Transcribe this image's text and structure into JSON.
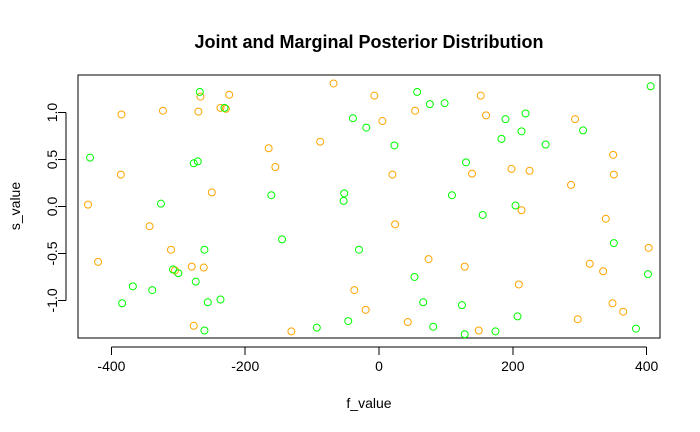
{
  "chart_data": {
    "type": "scatter",
    "title": "Joint and Marginal Posterior Distribution",
    "xlabel": "f_value",
    "ylabel": "s_value",
    "xlim": [
      -450,
      420
    ],
    "ylim": [
      -1.4,
      1.4
    ],
    "x_ticks": [
      -400,
      -200,
      0,
      200,
      400
    ],
    "y_ticks": [
      -1.0,
      -0.5,
      0.0,
      0.5,
      1.0
    ],
    "x_tick_labels": [
      "-400",
      "-200",
      "0",
      "200",
      "400"
    ],
    "y_tick_labels": [
      "-1.0",
      "-0.5",
      "0.0",
      "0.5",
      "1.0"
    ],
    "legend": "none",
    "grid": false,
    "series": [
      {
        "color": "#FFA500",
        "points": [
          {
            "x": -435,
            "y": 0.02
          },
          {
            "x": -420,
            "y": -0.59
          },
          {
            "x": -385,
            "y": 0.98
          },
          {
            "x": -386,
            "y": 0.34
          },
          {
            "x": -343,
            "y": -0.21
          },
          {
            "x": -323,
            "y": 1.02
          },
          {
            "x": -311,
            "y": -0.46
          },
          {
            "x": -305,
            "y": -0.68
          },
          {
            "x": -280,
            "y": -0.64
          },
          {
            "x": -277,
            "y": -1.27
          },
          {
            "x": -270,
            "y": 1.01
          },
          {
            "x": -267,
            "y": 1.17
          },
          {
            "x": -262,
            "y": -0.65
          },
          {
            "x": -250,
            "y": 0.15
          },
          {
            "x": -237,
            "y": 1.05
          },
          {
            "x": -229,
            "y": 1.04
          },
          {
            "x": -224,
            "y": 1.19
          },
          {
            "x": -165,
            "y": 0.62
          },
          {
            "x": -155,
            "y": 0.42
          },
          {
            "x": -131,
            "y": -1.33
          },
          {
            "x": -88,
            "y": 0.69
          },
          {
            "x": -68,
            "y": 1.31
          },
          {
            "x": -37,
            "y": -0.89
          },
          {
            "x": -20,
            "y": -1.1
          },
          {
            "x": -7,
            "y": 1.18
          },
          {
            "x": 5,
            "y": 0.91
          },
          {
            "x": 20,
            "y": 0.34
          },
          {
            "x": 24,
            "y": -0.19
          },
          {
            "x": 43,
            "y": -1.23
          },
          {
            "x": 54,
            "y": 1.02
          },
          {
            "x": 74,
            "y": -0.56
          },
          {
            "x": 128,
            "y": -0.64
          },
          {
            "x": 139,
            "y": 0.35
          },
          {
            "x": 149,
            "y": -1.32
          },
          {
            "x": 152,
            "y": 1.18
          },
          {
            "x": 160,
            "y": 0.97
          },
          {
            "x": 198,
            "y": 0.4
          },
          {
            "x": 209,
            "y": -0.83
          },
          {
            "x": 213,
            "y": -0.04
          },
          {
            "x": 225,
            "y": 0.38
          },
          {
            "x": 287,
            "y": 0.23
          },
          {
            "x": 293,
            "y": 0.93
          },
          {
            "x": 297,
            "y": -1.2
          },
          {
            "x": 315,
            "y": -0.61
          },
          {
            "x": 335,
            "y": -0.69
          },
          {
            "x": 339,
            "y": -0.13
          },
          {
            "x": 349,
            "y": -1.03
          },
          {
            "x": 350,
            "y": 0.55
          },
          {
            "x": 351,
            "y": 0.34
          },
          {
            "x": 365,
            "y": -1.12
          },
          {
            "x": 403,
            "y": -0.44
          }
        ]
      },
      {
        "color": "#00FF00",
        "points": [
          {
            "x": -432,
            "y": 0.52
          },
          {
            "x": -384,
            "y": -1.03
          },
          {
            "x": -368,
            "y": -0.85
          },
          {
            "x": -339,
            "y": -0.89
          },
          {
            "x": -326,
            "y": 0.03
          },
          {
            "x": -308,
            "y": -0.67
          },
          {
            "x": -300,
            "y": -0.71
          },
          {
            "x": -277,
            "y": 0.46
          },
          {
            "x": -274,
            "y": -0.8
          },
          {
            "x": -271,
            "y": 0.48
          },
          {
            "x": -268,
            "y": 1.22
          },
          {
            "x": -261,
            "y": -0.46
          },
          {
            "x": -261,
            "y": -1.32
          },
          {
            "x": -256,
            "y": -1.02
          },
          {
            "x": -237,
            "y": -0.99
          },
          {
            "x": -231,
            "y": 1.05
          },
          {
            "x": -161,
            "y": 0.12
          },
          {
            "x": -145,
            "y": -0.35
          },
          {
            "x": -93,
            "y": -1.29
          },
          {
            "x": -52,
            "y": 0.14
          },
          {
            "x": -53,
            "y": 0.06
          },
          {
            "x": -46,
            "y": -1.22
          },
          {
            "x": -39,
            "y": 0.94
          },
          {
            "x": -30,
            "y": -0.46
          },
          {
            "x": -19,
            "y": 0.84
          },
          {
            "x": 23,
            "y": 0.65
          },
          {
            "x": 53,
            "y": -0.75
          },
          {
            "x": 57,
            "y": 1.22
          },
          {
            "x": 66,
            "y": -1.02
          },
          {
            "x": 76,
            "y": 1.09
          },
          {
            "x": 81,
            "y": -1.28
          },
          {
            "x": 98,
            "y": 1.1
          },
          {
            "x": 109,
            "y": 0.12
          },
          {
            "x": 124,
            "y": -1.05
          },
          {
            "x": 128,
            "y": -1.36
          },
          {
            "x": 130,
            "y": 0.47
          },
          {
            "x": 155,
            "y": -0.09
          },
          {
            "x": 174,
            "y": -1.33
          },
          {
            "x": 183,
            "y": 0.72
          },
          {
            "x": 189,
            "y": 0.93
          },
          {
            "x": 204,
            "y": 0.01
          },
          {
            "x": 207,
            "y": -1.17
          },
          {
            "x": 213,
            "y": 0.8
          },
          {
            "x": 219,
            "y": 0.99
          },
          {
            "x": 249,
            "y": 0.66
          },
          {
            "x": 305,
            "y": 0.81
          },
          {
            "x": 351,
            "y": -0.39
          },
          {
            "x": 384,
            "y": -1.3
          },
          {
            "x": 402,
            "y": -0.72
          },
          {
            "x": 406,
            "y": 1.28
          }
        ]
      }
    ]
  }
}
